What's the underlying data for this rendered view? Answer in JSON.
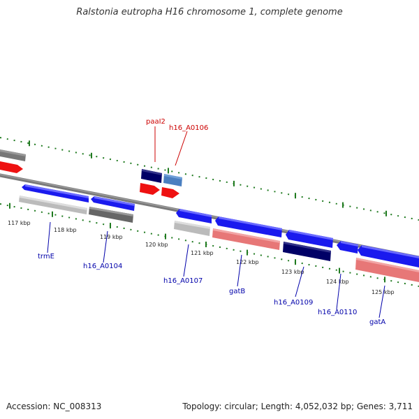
{
  "title": "Ralstonia eutropha H16 chromosome 1, complete genome",
  "footer": {
    "accession": "Accession: NC_008313",
    "summary": "Topology: circular; Length: 4,052,032 bp; Genes: 3,711"
  },
  "colors": {
    "forward_gene": "#1a1aee",
    "dark_gene": "#000066",
    "light_blue_gene": "#4a7fc0",
    "red_gene": "#ee1111",
    "pink_cds": "#e77777",
    "grey_cds": "#666666",
    "light_grey_cds": "#bbbbbb",
    "tick": "#1f7a1f",
    "outer_label": "#cc0000",
    "inner_label": "#0000aa",
    "backbone": "#7a7a7a"
  },
  "ticks": [
    "117 kbp",
    "118 kbp",
    "119 kbp",
    "120 kbp",
    "121 kbp",
    "122 kbp",
    "123 kbp",
    "124 kbp",
    "125 kbp"
  ],
  "outer_genes": [
    "paaI2",
    "h16_A0106"
  ],
  "inner_genes": [
    "trmE",
    "h16_A0104",
    "h16_A0107",
    "gatB",
    "h16_A0109",
    "h16_A0110",
    "gatA"
  ]
}
